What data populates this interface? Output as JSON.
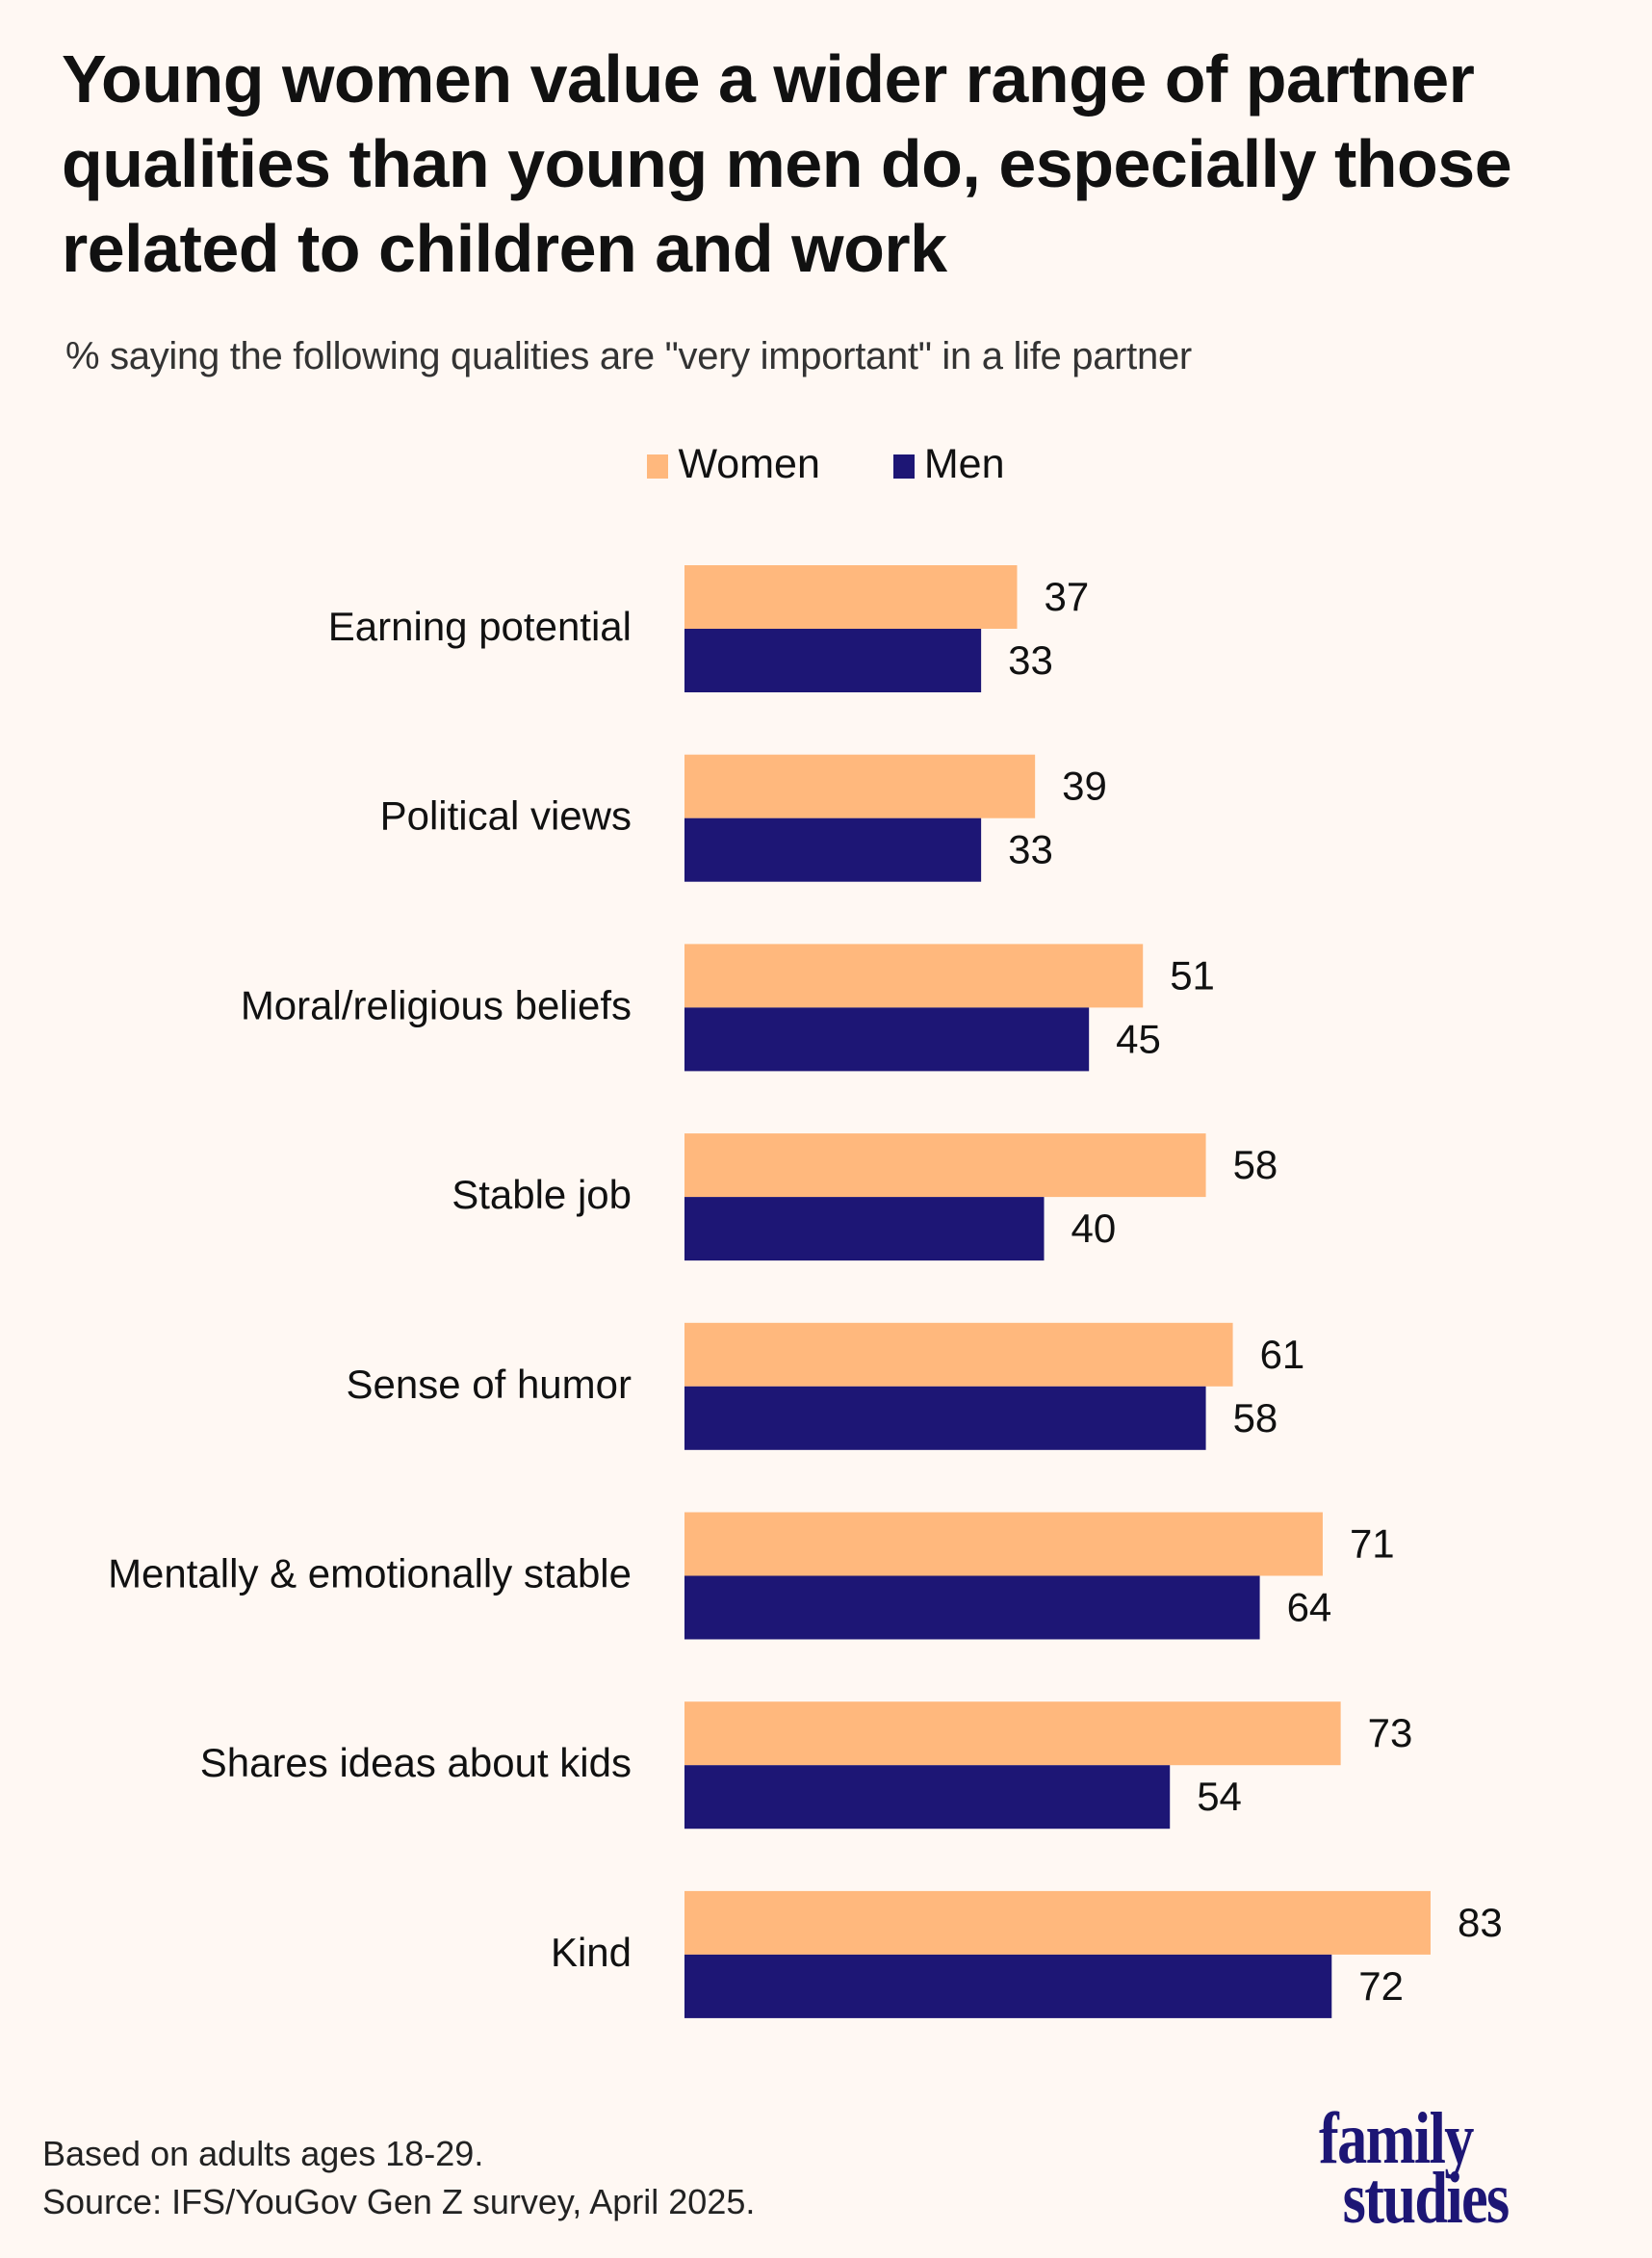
{
  "header": {
    "title": "Young women value a wider range of partner qualities than young men do, especially those related to children and work",
    "subtitle": "% saying the following qualities are \"very important\" in a life partner"
  },
  "legend": [
    {
      "label": "Women",
      "color": "#ffb87d"
    },
    {
      "label": "Men",
      "color": "#1d1675"
    }
  ],
  "chart_data": {
    "type": "bar",
    "orientation": "horizontal",
    "title": "Young women value a wider range of partner qualities than young men do, especially those related to children and work",
    "subtitle": "% saying the following qualities are \"very important\" in a life partner",
    "xlabel": "",
    "ylabel": "",
    "xlim": [
      0,
      100
    ],
    "grid": false,
    "legend_position": "top-center",
    "categories": [
      "Earning potential",
      "Political views",
      "Moral/religious beliefs",
      "Stable job",
      "Sense of humor",
      "Mentally & emotionally stable",
      "Shares ideas about kids",
      "Kind"
    ],
    "series": [
      {
        "name": "Women",
        "color": "#ffb87d",
        "values": [
          37,
          39,
          51,
          58,
          61,
          71,
          73,
          83
        ]
      },
      {
        "name": "Men",
        "color": "#1d1675",
        "values": [
          33,
          33,
          45,
          40,
          58,
          64,
          54,
          72
        ]
      }
    ]
  },
  "footer": {
    "note": "Based on adults ages 18-29.",
    "source": "Source: IFS/YouGov Gen Z survey, April 2025.",
    "logo_line1": "family",
    "logo_line2": "studies"
  }
}
